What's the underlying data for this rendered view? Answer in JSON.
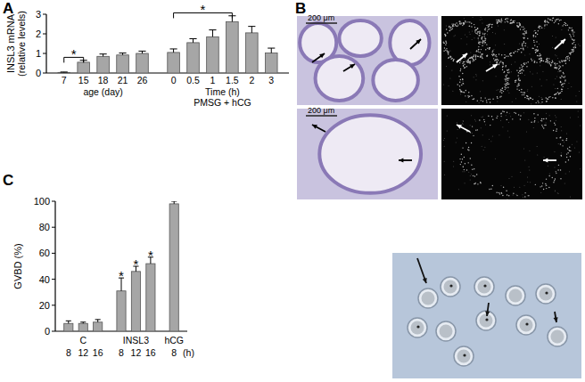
{
  "chart_data": [
    {
      "type": "bar",
      "title": "A",
      "ylabel": [
        "INSL3 mRNA",
        "(relative levels)"
      ],
      "categories": [
        "7",
        "15",
        "18",
        "21",
        "26",
        "0",
        "0.5",
        "1",
        "1.5",
        "2",
        "3"
      ],
      "values": [
        0.03,
        0.55,
        0.85,
        0.92,
        1.0,
        1.05,
        1.55,
        1.85,
        2.62,
        2.05,
        1.02
      ],
      "errors": [
        0.02,
        0.1,
        0.12,
        0.1,
        0.12,
        0.18,
        0.2,
        0.35,
        0.3,
        0.33,
        0.25
      ],
      "groups": [
        {
          "label": "age (day)",
          "count": 5
        },
        {
          "label": "Time (h)",
          "sublabel": "PMSG + hCG",
          "count": 6
        }
      ],
      "annotations": [
        {
          "text": "*",
          "from": 0,
          "to": 1
        },
        {
          "text": "*",
          "from": 5,
          "to": 8
        }
      ],
      "color": "#a6a6a6",
      "ylim": [
        0,
        3
      ],
      "yticks": [
        0,
        1,
        2,
        3
      ]
    },
    {
      "type": "bar",
      "title": "C",
      "ylabel": [
        "GVBD (%)"
      ],
      "categories": [
        "8",
        "12",
        "16",
        "8",
        "12",
        "16",
        "8"
      ],
      "xunit": "(h)",
      "values": [
        6,
        6,
        7,
        31,
        46,
        52,
        98
      ],
      "errors": [
        2,
        1,
        2,
        10,
        4,
        5,
        2
      ],
      "groups": [
        {
          "label": "C",
          "count": 3
        },
        {
          "label": "INSL3",
          "count": 3
        },
        {
          "label": "hCG",
          "count": 1
        }
      ],
      "annotations": [
        {
          "text": "*",
          "index": 3
        },
        {
          "text": "*",
          "index": 4
        },
        {
          "text": "*",
          "index": 5
        }
      ],
      "color": "#a6a6a6",
      "ylim": [
        0,
        100
      ],
      "yticks": [
        0,
        20,
        40,
        60,
        80,
        100
      ]
    }
  ],
  "panel_b": {
    "label": "B",
    "scale_bars": [
      "200 μm",
      "200 μm"
    ]
  }
}
